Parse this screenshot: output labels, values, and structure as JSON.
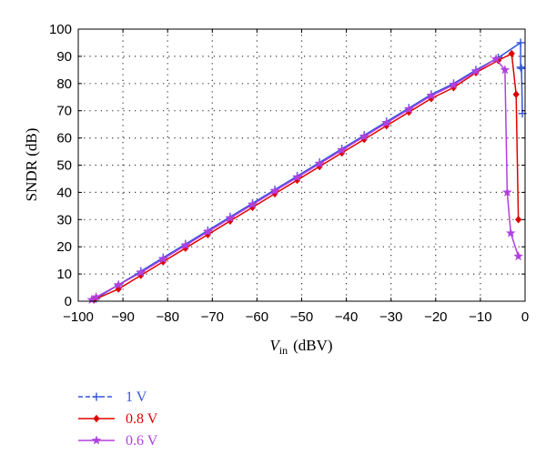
{
  "chart_data": {
    "type": "line",
    "title": "",
    "xlabel_main": "V",
    "xlabel_sub": "in",
    "xlabel_unit": "(dBV)",
    "ylabel": "SNDR (dB)",
    "xlim": [
      -100,
      0
    ],
    "ylim": [
      0,
      100
    ],
    "xticks": [
      -100,
      -90,
      -80,
      -70,
      -60,
      -50,
      -40,
      -30,
      -20,
      -10,
      0
    ],
    "xtick_labels": [
      "−100",
      "−90",
      "−80",
      "−70",
      "−60",
      "−50",
      "−40",
      "−30",
      "−20",
      "−10",
      "0"
    ],
    "yticks": [
      0,
      10,
      20,
      30,
      40,
      50,
      60,
      70,
      80,
      90,
      100
    ],
    "ytick_labels": [
      "0",
      "10",
      "20",
      "30",
      "40",
      "50",
      "60",
      "70",
      "80",
      "90",
      "100"
    ],
    "grid": true,
    "legend_position": "below",
    "series": [
      {
        "name": "1 V",
        "color": "#3355dd",
        "marker": "plus",
        "x": [
          -96,
          -91,
          -86,
          -81,
          -76,
          -71,
          -66,
          -61,
          -56,
          -51,
          -46,
          -41,
          -36,
          -31,
          -26,
          -21,
          -16,
          -11,
          -6,
          -1,
          -1,
          -0.8,
          -0.6
        ],
        "y": [
          1,
          6,
          11,
          16,
          21,
          26,
          31,
          36,
          41,
          46,
          51,
          56,
          61,
          66,
          71,
          76,
          80,
          85,
          89.5,
          95,
          86,
          85.5,
          69
        ]
      },
      {
        "name": "0.8 V",
        "color": "#e00000",
        "marker": "diamond",
        "x": [
          -96.5,
          -91,
          -86,
          -81,
          -76,
          -71,
          -66,
          -61,
          -56,
          -51,
          -46,
          -41,
          -36,
          -31,
          -26,
          -21,
          -16,
          -11,
          -6,
          -3,
          -2,
          -1.5
        ],
        "y": [
          0.5,
          4.5,
          9.5,
          14.5,
          19.5,
          24.5,
          29.5,
          34.5,
          39.5,
          44.5,
          49.5,
          54.5,
          59.5,
          64.5,
          69.5,
          74.5,
          78.5,
          84,
          88.5,
          91,
          76,
          30
        ]
      },
      {
        "name": "0.6 V",
        "color": "#b040e0",
        "marker": "star",
        "x": [
          -97,
          -96,
          -91,
          -86,
          -81,
          -76,
          -71,
          -66,
          -61,
          -56,
          -51,
          -46,
          -41,
          -36,
          -31,
          -26,
          -21,
          -16,
          -11,
          -6.5,
          -4.5,
          -4,
          -3.2,
          -1.5
        ],
        "y": [
          0.5,
          1.5,
          6,
          10.5,
          15.5,
          20.5,
          25.5,
          30.5,
          35.5,
          40.5,
          45.5,
          50.5,
          55.5,
          60.5,
          65.5,
          70.5,
          75.5,
          79.5,
          84.5,
          89,
          85,
          40,
          25,
          16.5
        ]
      }
    ]
  }
}
